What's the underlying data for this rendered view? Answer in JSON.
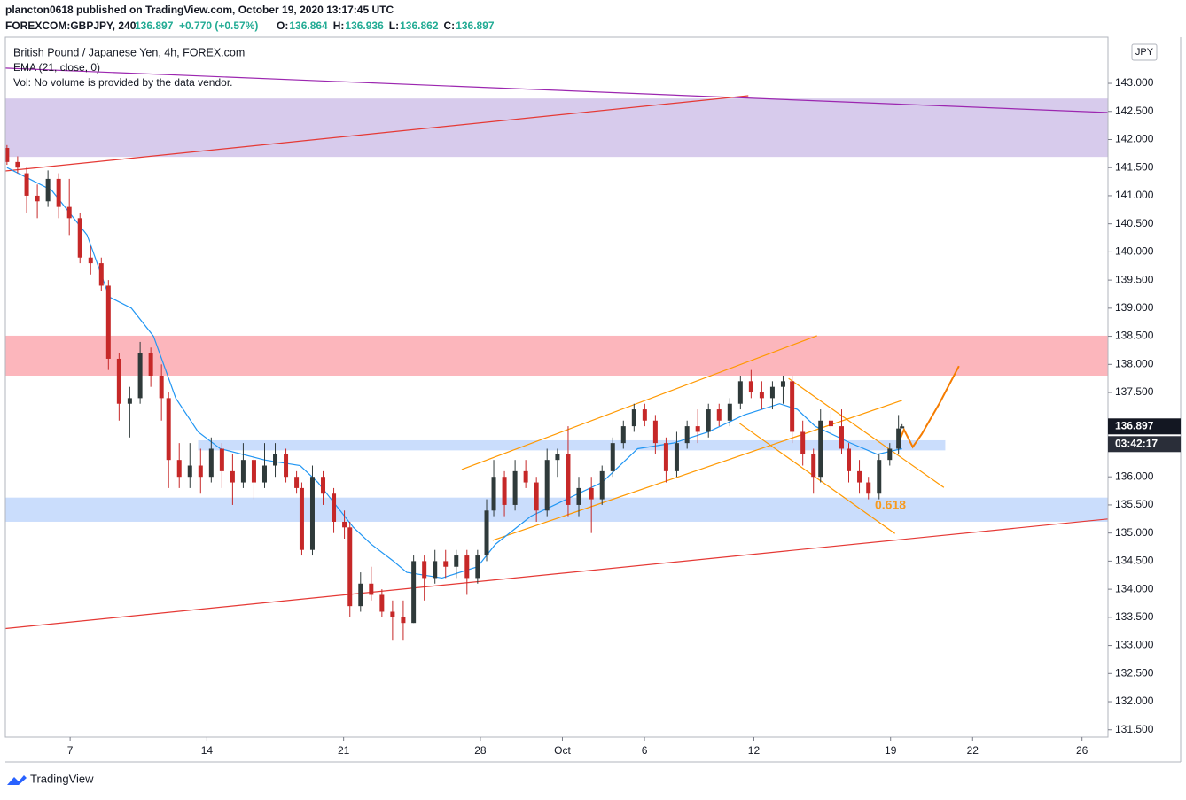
{
  "header": {
    "published": "plancton0618 published on TradingView.com, October 19, 2020 13:17:45 UTC",
    "symbol": "FOREXCOM:GBPJPY, 240",
    "price": 136.897,
    "change": "+0.770 (+0.57%)",
    "ohlc": [
      {
        "label": "O:",
        "value": 136.864
      },
      {
        "label": "H:",
        "value": 136.936
      },
      {
        "label": "L:",
        "value": 136.862
      },
      {
        "label": "C:",
        "value": 136.897
      }
    ],
    "logo": "TradingView"
  },
  "chart_data": {
    "type": "candlestick",
    "legend_lines": [
      "British Pound / Japanese Yen, 4h, FOREX.com",
      "EMA (21, close, 0)",
      "Vol: No volume is provided by the data vendor."
    ],
    "currency": "JPY",
    "up_color": "#2f3a3a",
    "down_color": "#c62828",
    "candles": {
      "x": [
        -2.31,
        -1.92,
        -1.59,
        -1.2,
        -0.81,
        -0.42,
        -0.03,
        0.36,
        0.75,
        1.14,
        1.4,
        1.79,
        2.18,
        2.56,
        2.95,
        3.34,
        3.6,
        3.99,
        4.38,
        4.77,
        5.16,
        5.55,
        5.94,
        6.33,
        6.72,
        7.11,
        7.5,
        7.89,
        8.28,
        8.47,
        8.86,
        9.25,
        9.64,
        10.03,
        10.23,
        10.62,
        11.01,
        11.4,
        11.79,
        12.18,
        12.56,
        12.95,
        13.34,
        13.73,
        14.12,
        14.51,
        14.9,
        15.23,
        15.49,
        15.88,
        16.27,
        16.66,
        17.05,
        17.44,
        17.82,
        18.21,
        18.6,
        19.06,
        19.45,
        19.84,
        20.23,
        20.62,
        21.01,
        21.4,
        21.79,
        22.18,
        22.56,
        22.95,
        23.34,
        23.73,
        24.12,
        24.51,
        24.9,
        25.29,
        25.68,
        26.07,
        26.4,
        26.79,
        27.18,
        27.44,
        27.82,
        28.21,
        28.47,
        28.86,
        29.19,
        29.58,
        29.97,
        30.29,
        30.42
      ],
      "open": [
        141.85,
        141.6,
        141.4,
        141.0,
        140.9,
        141.3,
        140.8,
        140.6,
        139.9,
        139.8,
        139.4,
        138.1,
        137.3,
        137.4,
        138.2,
        137.8,
        137.4,
        136.3,
        136.0,
        136.2,
        136.0,
        136.5,
        136.1,
        135.9,
        136.3,
        135.9,
        136.2,
        136.4,
        136.0,
        135.8,
        134.7,
        136.0,
        135.7,
        135.2,
        135.1,
        133.7,
        134.1,
        133.9,
        133.6,
        133.5,
        133.4,
        134.5,
        134.2,
        134.5,
        134.4,
        134.6,
        134.2,
        134.6,
        135.4,
        136.0,
        135.5,
        136.1,
        135.9,
        135.4,
        136.3,
        136.4,
        135.5,
        135.8,
        135.6,
        136.1,
        136.6,
        136.9,
        137.2,
        137.0,
        136.6,
        136.1,
        136.6,
        136.9,
        136.8,
        137.2,
        137.0,
        137.3,
        137.7,
        137.5,
        137.4,
        137.6,
        137.7,
        136.8,
        136.4,
        136.0,
        137.0,
        136.9,
        136.5,
        136.1,
        135.9,
        135.7,
        136.3,
        136.5,
        136.864
      ],
      "high": [
        141.9,
        141.7,
        141.5,
        141.2,
        141.45,
        141.4,
        141.3,
        140.7,
        140.1,
        139.9,
        139.5,
        138.2,
        137.6,
        138.4,
        138.3,
        138.0,
        137.5,
        136.6,
        136.6,
        136.5,
        136.7,
        136.6,
        136.4,
        136.6,
        136.4,
        136.6,
        136.6,
        136.5,
        136.1,
        135.9,
        136.2,
        136.1,
        135.8,
        135.4,
        135.2,
        134.3,
        134.4,
        134.0,
        133.8,
        133.8,
        134.6,
        134.6,
        134.7,
        134.7,
        134.7,
        134.7,
        134.7,
        135.6,
        136.3,
        136.1,
        136.3,
        136.3,
        136.0,
        136.5,
        136.5,
        136.9,
        136.0,
        136.0,
        136.2,
        136.7,
        137.0,
        137.3,
        137.3,
        137.1,
        136.7,
        136.8,
        137.0,
        137.2,
        137.3,
        137.3,
        137.4,
        137.8,
        137.9,
        137.7,
        137.7,
        137.8,
        137.8,
        137.0,
        136.5,
        137.2,
        137.2,
        137.2,
        136.6,
        136.3,
        136.0,
        136.4,
        136.6,
        137.1,
        136.936
      ],
      "low": [
        141.55,
        141.4,
        140.7,
        140.6,
        140.8,
        140.6,
        140.3,
        139.8,
        139.6,
        139.3,
        137.9,
        137.0,
        136.7,
        137.3,
        137.6,
        137.0,
        135.8,
        135.8,
        135.8,
        135.7,
        135.9,
        135.8,
        135.5,
        135.8,
        135.6,
        135.8,
        136.0,
        135.9,
        135.7,
        134.6,
        134.6,
        135.5,
        135.0,
        134.9,
        133.5,
        133.6,
        133.8,
        133.5,
        133.1,
        133.1,
        133.4,
        133.8,
        134.1,
        134.2,
        134.2,
        133.9,
        134.1,
        134.5,
        135.3,
        135.3,
        135.4,
        135.8,
        135.2,
        135.3,
        136.0,
        135.3,
        135.3,
        135.0,
        135.5,
        136.0,
        136.5,
        136.8,
        136.9,
        136.4,
        135.9,
        136.0,
        136.5,
        136.6,
        136.7,
        136.9,
        136.9,
        137.2,
        137.4,
        137.2,
        137.2,
        137.3,
        136.6,
        136.2,
        135.7,
        135.9,
        136.7,
        136.4,
        135.9,
        135.7,
        135.6,
        135.6,
        136.2,
        136.4,
        136.862
      ],
      "close": [
        141.6,
        141.5,
        141.0,
        140.9,
        141.3,
        140.8,
        140.6,
        139.9,
        139.8,
        139.4,
        138.1,
        137.3,
        137.4,
        138.2,
        137.8,
        137.4,
        136.3,
        136.0,
        136.2,
        136.0,
        136.5,
        136.1,
        135.9,
        136.3,
        135.9,
        136.2,
        136.4,
        136.0,
        135.8,
        134.7,
        136.0,
        135.7,
        135.2,
        135.1,
        133.7,
        134.1,
        133.9,
        133.6,
        133.5,
        133.4,
        134.5,
        134.2,
        134.5,
        134.4,
        134.6,
        134.2,
        134.6,
        135.4,
        136.0,
        135.5,
        136.1,
        135.9,
        135.4,
        136.3,
        136.4,
        135.5,
        135.8,
        135.6,
        136.1,
        136.6,
        136.9,
        137.2,
        137.0,
        136.6,
        136.1,
        136.6,
        136.9,
        136.8,
        137.2,
        137.0,
        137.3,
        137.7,
        137.5,
        137.4,
        137.6,
        137.7,
        136.8,
        136.4,
        136.0,
        137.0,
        136.9,
        136.5,
        136.1,
        135.9,
        135.7,
        136.3,
        136.5,
        136.86,
        136.897
      ]
    },
    "ema": {
      "color": "#2196f3",
      "x": [
        -2.31,
        -0.68,
        0.62,
        1.43,
        2.24,
        3.05,
        3.86,
        4.68,
        5.49,
        7.11,
        8.41,
        9.06,
        9.71,
        10.36,
        11.01,
        11.82,
        12.31,
        13.6,
        14.9,
        15.55,
        16.85,
        18.15,
        19.45,
        20.1,
        20.75,
        22.05,
        23.34,
        24.64,
        25.94,
        26.59,
        27.24,
        28.54,
        29.51,
        30.42
      ],
      "values": [
        141.5,
        141.1,
        140.3,
        139.2,
        139.0,
        138.5,
        137.4,
        136.8,
        136.5,
        136.3,
        136.2,
        135.9,
        135.5,
        135.1,
        134.8,
        134.5,
        134.3,
        134.2,
        134.4,
        134.8,
        135.3,
        135.6,
        135.9,
        136.2,
        136.5,
        136.6,
        136.8,
        137.1,
        137.3,
        137.2,
        136.9,
        136.6,
        136.4,
        136.5
      ]
    },
    "zones": [
      {
        "color": "rgba(149,117,205,0.38)",
        "y": [
          141.69,
          142.73
        ]
      },
      {
        "color": "rgba(247,82,95,0.42)",
        "y": [
          137.8,
          138.51
        ]
      },
      {
        "color": "rgba(66,133,244,0.28)",
        "y": [
          136.47,
          136.65
        ],
        "x": [
          4.68,
          32.0
        ]
      },
      {
        "color": "rgba(66,133,244,0.28)",
        "y": [
          135.2,
          135.63
        ]
      }
    ],
    "lines": [
      {
        "color": "#9c27b0",
        "x": [
          -2.37,
          37.95
        ],
        "y": [
          143.27,
          142.48
        ]
      },
      {
        "color": "#e53935",
        "x": [
          -2.37,
          24.8
        ],
        "y": [
          141.44,
          142.78
        ]
      },
      {
        "color": "#e53935",
        "x": [
          -2.37,
          37.95
        ],
        "y": [
          133.3,
          135.25
        ]
      },
      {
        "color": "#ff9800",
        "x": [
          14.32,
          27.31
        ],
        "y": [
          136.13,
          138.51
        ]
      },
      {
        "color": "#ff9800",
        "x": [
          15.45,
          30.42
        ],
        "y": [
          134.87,
          137.36
        ]
      },
      {
        "color": "#ff9800",
        "x": [
          26.27,
          31.95
        ],
        "y": [
          137.75,
          135.81
        ]
      },
      {
        "color": "#ff9800",
        "x": [
          24.48,
          30.16
        ],
        "y": [
          136.95,
          134.99
        ]
      },
      {
        "color": "#f57c00",
        "width": 2,
        "x": [
          30.23,
          30.49,
          30.81,
          31.14,
          31.79,
          32.5
        ],
        "y": [
          136.53,
          136.84,
          136.53,
          136.76,
          137.31,
          137.97
        ]
      }
    ],
    "annotation": "0.618",
    "price_marker": 136.897,
    "countdown": "03:42:17",
    "xlim": [
      -2.37,
      37.95
    ],
    "ylim": [
      131.37,
      143.82
    ],
    "xticks": [
      {
        "value": 0,
        "label": "7"
      },
      {
        "value": 5,
        "label": "14"
      },
      {
        "value": 10,
        "label": "21"
      },
      {
        "value": 15,
        "label": "28"
      },
      {
        "value": 18,
        "label": "Oct"
      },
      {
        "value": 21,
        "label": "6"
      },
      {
        "value": 25,
        "label": "12"
      },
      {
        "value": 30,
        "label": "19"
      },
      {
        "value": 33,
        "label": "22"
      },
      {
        "value": 37,
        "label": "26"
      }
    ],
    "yticks": [
      {
        "value": 131.5,
        "label": "131.500"
      },
      {
        "value": 132,
        "label": "132.000"
      },
      {
        "value": 132.5,
        "label": "132.500"
      },
      {
        "value": 133,
        "label": "133.000"
      },
      {
        "value": 133.5,
        "label": "133.500"
      },
      {
        "value": 134,
        "label": "134.000"
      },
      {
        "value": 134.5,
        "label": "134.500"
      },
      {
        "value": 135,
        "label": "135.000"
      },
      {
        "value": 135.5,
        "label": "135.500"
      },
      {
        "value": 136,
        "label": "136.000"
      },
      {
        "value": 136.5,
        "label": "136.500"
      },
      {
        "value": 137.5,
        "label": "137.500"
      },
      {
        "value": 138,
        "label": "138.000"
      },
      {
        "value": 138.5,
        "label": "138.500"
      },
      {
        "value": 139,
        "label": "139.000"
      },
      {
        "value": 139.5,
        "label": "139.500"
      },
      {
        "value": 140,
        "label": "140.000"
      },
      {
        "value": 140.5,
        "label": "140.500"
      },
      {
        "value": 141,
        "label": "141.000"
      },
      {
        "value": 141.5,
        "label": "141.500"
      },
      {
        "value": 142,
        "label": "142.000"
      },
      {
        "value": 142.5,
        "label": "142.500"
      },
      {
        "value": 143,
        "label": "143.000"
      }
    ]
  }
}
